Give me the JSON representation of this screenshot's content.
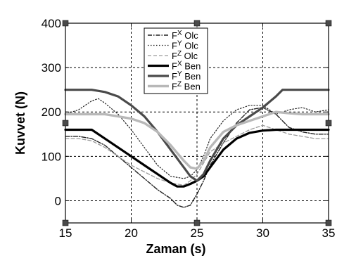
{
  "chart_data": {
    "type": "line",
    "xlabel": "Zaman (s)",
    "ylabel": "Kuvvet (N)",
    "xlim": [
      15,
      35
    ],
    "ylim": [
      -50,
      400
    ],
    "xticks": [
      15,
      20,
      25,
      30,
      35
    ],
    "yticks": [
      0,
      100,
      200,
      300,
      400
    ],
    "grid": true,
    "legend_position": "top-center",
    "series": [
      {
        "name": "Fx Olc",
        "sub": "X",
        "label": "Olc",
        "color": "#222222",
        "width": 1.4,
        "dash": "6 2 1.5 2",
        "x": [
          15,
          16,
          17,
          18,
          19,
          20,
          21,
          22,
          23,
          23.5,
          24,
          24.5,
          25,
          25.5,
          26,
          27,
          28,
          29,
          30,
          31,
          32,
          33,
          34,
          35
        ],
        "y": [
          145,
          145,
          140,
          125,
          100,
          75,
          50,
          25,
          5,
          -10,
          -15,
          -10,
          15,
          45,
          80,
          130,
          175,
          205,
          210,
          195,
          165,
          155,
          150,
          150
        ]
      },
      {
        "name": "Fy Olc",
        "sub": "Y",
        "label": "Olc",
        "color": "#222222",
        "width": 1.2,
        "dash": "1.5 2.5",
        "x": [
          15,
          16,
          17,
          17.5,
          18,
          19,
          20,
          21,
          22,
          23,
          24,
          24.5,
          25,
          25.5,
          26,
          27,
          28,
          29,
          30,
          31,
          32,
          33,
          34,
          35
        ],
        "y": [
          195,
          205,
          225,
          230,
          220,
          195,
          160,
          120,
          80,
          55,
          50,
          55,
          70,
          100,
          140,
          180,
          205,
          215,
          215,
          195,
          205,
          210,
          200,
          205
        ]
      },
      {
        "name": "Fz Olc",
        "sub": "Z",
        "label": "Olc",
        "color": "#9a9a9a",
        "width": 1.3,
        "dash": "5 3",
        "x": [
          15,
          16,
          17,
          18,
          19,
          20,
          21,
          22,
          23,
          24,
          24.5,
          25,
          25.5,
          26,
          27,
          28,
          29,
          30,
          31,
          32,
          33,
          34,
          35
        ],
        "y": [
          140,
          140,
          135,
          120,
          100,
          80,
          65,
          50,
          40,
          35,
          45,
          60,
          85,
          110,
          130,
          145,
          160,
          170,
          160,
          150,
          145,
          140,
          140
        ]
      },
      {
        "name": "Fx Ben",
        "sub": "X",
        "label": "Ben",
        "color": "#000000",
        "width": 3.2,
        "dash": "",
        "x": [
          15,
          16,
          17,
          18,
          19,
          20,
          21,
          22,
          23,
          23.5,
          24,
          24.5,
          25,
          25.5,
          26,
          27,
          28,
          29,
          30,
          31,
          32,
          33,
          34,
          35
        ],
        "y": [
          160,
          160,
          160,
          140,
          120,
          100,
          80,
          60,
          40,
          32,
          32,
          38,
          45,
          55,
          75,
          115,
          140,
          153,
          158,
          160,
          160,
          160,
          160,
          160
        ]
      },
      {
        "name": "Fy Ben",
        "sub": "Y",
        "label": "Ben",
        "color": "#4a4a4a",
        "width": 3.2,
        "dash": "",
        "x": [
          15,
          16,
          17,
          18,
          19,
          20,
          21,
          22,
          23,
          24,
          24.5,
          25,
          25.5,
          26,
          27,
          28,
          29,
          30,
          31,
          31.5,
          32,
          33,
          34,
          35
        ],
        "y": [
          250,
          250,
          250,
          245,
          235,
          215,
          190,
          155,
          115,
          75,
          55,
          45,
          60,
          90,
          140,
          170,
          190,
          210,
          235,
          250,
          250,
          250,
          250,
          250
        ]
      },
      {
        "name": "Fz Ben",
        "sub": "Z",
        "label": "Ben",
        "color": "#b8b8b8",
        "width": 3.4,
        "dash": "",
        "x": [
          15,
          16,
          17,
          18,
          19,
          20,
          21,
          22,
          23,
          24,
          24.5,
          25,
          25.5,
          26,
          27,
          28,
          29,
          30,
          31,
          32,
          33,
          34,
          35
        ],
        "y": [
          195,
          195,
          195,
          195,
          190,
          185,
          175,
          155,
          125,
          90,
          75,
          72,
          90,
          120,
          155,
          170,
          180,
          190,
          200,
          197,
          195,
          195,
          195
        ]
      }
    ]
  }
}
